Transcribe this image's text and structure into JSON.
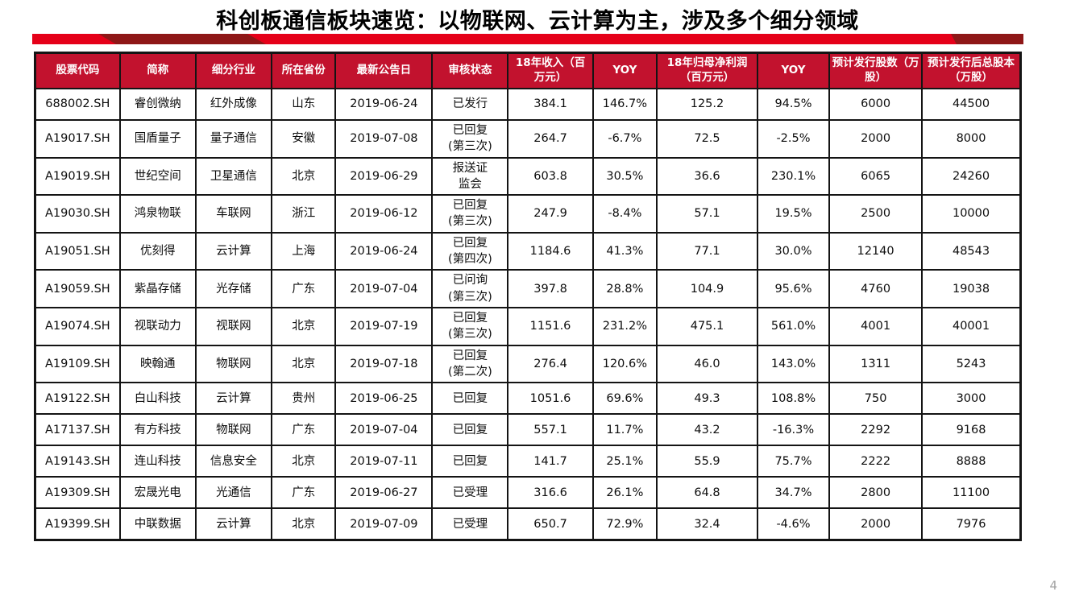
{
  "page": {
    "title": "科创板通信板块速览：以物联网、云计算为主，涉及多个细分领域",
    "page_number": "4"
  },
  "colors": {
    "header_bg": "#c2122e",
    "bar_bright_red": "#e50019",
    "bar_dark_red": "#8e1717",
    "border": "#141414"
  },
  "table": {
    "headers": [
      "股票代码",
      "简称",
      "细分行业",
      "所在省份",
      "最新公告日",
      "审核状态",
      "18年收入（百万元）",
      "YOY",
      "18年归母净利润（百万元）",
      "YOY",
      "预计发行股数（万股）",
      "预计发行后总股本（万股）"
    ],
    "rows": [
      [
        "688002.SH",
        "睿创微纳",
        "红外成像",
        "山东",
        "2019-06-24",
        "已发行",
        "384.1",
        "146.7%",
        "125.2",
        "94.5%",
        "6000",
        "44500"
      ],
      [
        "A19017.SH",
        "国盾量子",
        "量子通信",
        "安徽",
        "2019-07-08",
        "已回复\n(第三次)",
        "264.7",
        "-6.7%",
        "72.5",
        "-2.5%",
        "2000",
        "8000"
      ],
      [
        "A19019.SH",
        "世纪空间",
        "卫星通信",
        "北京",
        "2019-06-29",
        "报送证\n监会",
        "603.8",
        "30.5%",
        "36.6",
        "230.1%",
        "6065",
        "24260"
      ],
      [
        "A19030.SH",
        "鸿泉物联",
        "车联网",
        "浙江",
        "2019-06-12",
        "已回复\n(第三次)",
        "247.9",
        "-8.4%",
        "57.1",
        "19.5%",
        "2500",
        "10000"
      ],
      [
        "A19051.SH",
        "优刻得",
        "云计算",
        "上海",
        "2019-06-24",
        "已回复\n(第四次)",
        "1184.6",
        "41.3%",
        "77.1",
        "30.0%",
        "12140",
        "48543"
      ],
      [
        "A19059.SH",
        "紫晶存储",
        "光存储",
        "广东",
        "2019-07-04",
        "已问询\n(第三次)",
        "397.8",
        "28.8%",
        "104.9",
        "95.6%",
        "4760",
        "19038"
      ],
      [
        "A19074.SH",
        "视联动力",
        "视联网",
        "北京",
        "2019-07-19",
        "已回复\n(第三次)",
        "1151.6",
        "231.2%",
        "475.1",
        "561.0%",
        "4001",
        "40001"
      ],
      [
        "A19109.SH",
        "映翰通",
        "物联网",
        "北京",
        "2019-07-18",
        "已回复\n(第二次)",
        "276.4",
        "120.6%",
        "46.0",
        "143.0%",
        "1311",
        "5243"
      ],
      [
        "A19122.SH",
        "白山科技",
        "云计算",
        "贵州",
        "2019-06-25",
        "已回复",
        "1051.6",
        "69.6%",
        "49.3",
        "108.8%",
        "750",
        "3000"
      ],
      [
        "A17137.SH",
        "有方科技",
        "物联网",
        "广东",
        "2019-07-04",
        "已回复",
        "557.1",
        "11.7%",
        "43.2",
        "-16.3%",
        "2292",
        "9168"
      ],
      [
        "A19143.SH",
        "连山科技",
        "信息安全",
        "北京",
        "2019-07-11",
        "已回复",
        "141.7",
        "25.1%",
        "55.9",
        "75.7%",
        "2222",
        "8888"
      ],
      [
        "A19309.SH",
        "宏晟光电",
        "光通信",
        "广东",
        "2019-06-27",
        "已受理",
        "316.6",
        "26.1%",
        "64.8",
        "34.7%",
        "2800",
        "11100"
      ],
      [
        "A19399.SH",
        "中联数据",
        "云计算",
        "北京",
        "2019-07-09",
        "已受理",
        "650.7",
        "72.9%",
        "32.4",
        "-4.6%",
        "2000",
        "7976"
      ]
    ]
  }
}
